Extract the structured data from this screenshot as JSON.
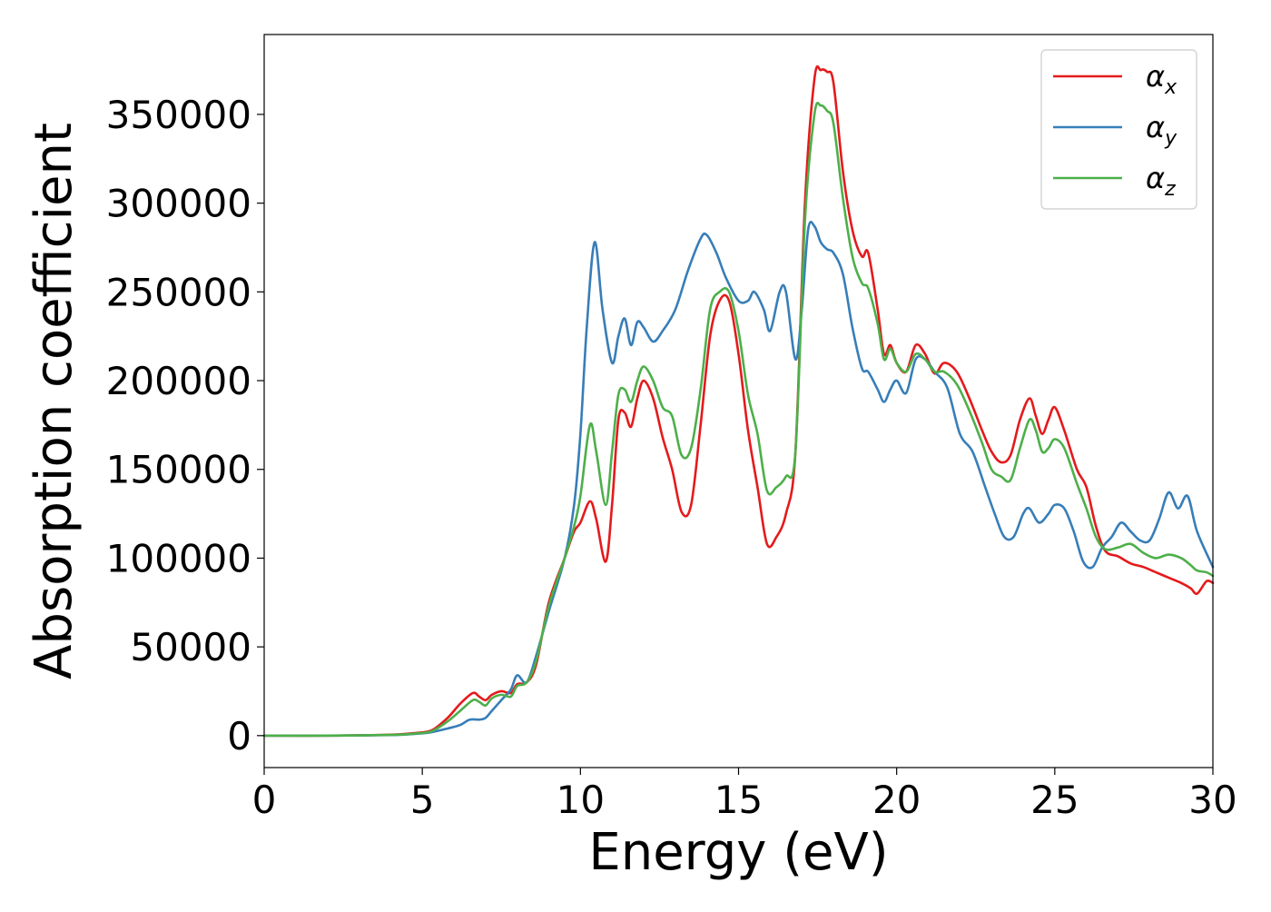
{
  "chart_data": {
    "type": "line",
    "title": "",
    "xlabel": "Energy (eV)",
    "ylabel": "Absorption coefficient",
    "xlim": [
      0,
      30
    ],
    "ylim": [
      -18000,
      395000
    ],
    "xticks": [
      0,
      5,
      10,
      15,
      20,
      25,
      30
    ],
    "yticks": [
      0,
      50000,
      100000,
      150000,
      200000,
      250000,
      300000,
      350000
    ],
    "grid": false,
    "legend_position": "top-right",
    "series": [
      {
        "name": "α_x",
        "legend_base": "α",
        "legend_sub": "x",
        "color": "#e41a1c",
        "x": [
          0,
          2,
          4,
          4.8,
          5.3,
          5.8,
          6.2,
          6.6,
          6.8,
          7.0,
          7.2,
          7.5,
          7.8,
          8.0,
          8.3,
          8.6,
          9.0,
          9.5,
          9.8,
          10.0,
          10.3,
          10.5,
          10.8,
          11.0,
          11.2,
          11.4,
          11.6,
          11.8,
          12.0,
          12.3,
          12.6,
          12.9,
          13.2,
          13.5,
          13.8,
          14.1,
          14.4,
          14.7,
          15.0,
          15.3,
          15.6,
          15.9,
          16.2,
          16.5,
          16.8,
          17.1,
          17.4,
          17.6,
          17.8,
          18.0,
          18.3,
          18.6,
          18.9,
          19.1,
          19.4,
          19.6,
          19.8,
          20.0,
          20.3,
          20.6,
          20.9,
          21.2,
          21.5,
          21.9,
          22.3,
          22.7,
          23.0,
          23.3,
          23.6,
          23.9,
          24.2,
          24.4,
          24.6,
          24.8,
          25.0,
          25.3,
          25.7,
          26.0,
          26.3,
          26.6,
          27.0,
          27.4,
          27.8,
          28.2,
          28.6,
          29.0,
          29.3,
          29.5,
          29.8,
          30.0
        ],
        "y": [
          0,
          0,
          500,
          1500,
          3000,
          10000,
          18000,
          24000,
          22000,
          20000,
          23000,
          25000,
          24000,
          29000,
          30000,
          40000,
          75000,
          100000,
          115000,
          120000,
          132000,
          122000,
          98000,
          130000,
          178000,
          182000,
          174000,
          190000,
          200000,
          190000,
          168000,
          150000,
          126000,
          130000,
          175000,
          225000,
          245000,
          245000,
          215000,
          172000,
          140000,
          108000,
          112000,
          125000,
          160000,
          300000,
          370000,
          375000,
          374000,
          368000,
          318000,
          285000,
          270000,
          272000,
          240000,
          215000,
          220000,
          210000,
          205000,
          220000,
          215000,
          204000,
          210000,
          205000,
          190000,
          172000,
          160000,
          154000,
          158000,
          178000,
          190000,
          180000,
          170000,
          178000,
          185000,
          172000,
          150000,
          140000,
          118000,
          104000,
          101000,
          97000,
          95000,
          92000,
          89000,
          86000,
          83000,
          80000,
          87000,
          86000
        ]
      },
      {
        "name": "α_y",
        "legend_base": "α",
        "legend_sub": "y",
        "color": "#377eb8",
        "x": [
          0,
          2,
          4,
          4.8,
          5.3,
          5.8,
          6.2,
          6.5,
          6.8,
          7.0,
          7.2,
          7.5,
          7.8,
          8.0,
          8.3,
          8.6,
          9.0,
          9.5,
          9.8,
          10.0,
          10.2,
          10.45,
          10.7,
          11.0,
          11.2,
          11.4,
          11.6,
          11.8,
          12.0,
          12.3,
          12.6,
          13.0,
          13.4,
          13.8,
          14.0,
          14.3,
          14.6,
          15.0,
          15.3,
          15.5,
          15.8,
          16.0,
          16.3,
          16.5,
          16.8,
          17.0,
          17.2,
          17.4,
          17.6,
          17.8,
          18.0,
          18.3,
          18.6,
          18.9,
          19.1,
          19.4,
          19.6,
          19.8,
          20.0,
          20.3,
          20.6,
          20.9,
          21.2,
          21.6,
          22.0,
          22.4,
          22.8,
          23.1,
          23.4,
          23.7,
          24.0,
          24.2,
          24.5,
          24.8,
          25.0,
          25.3,
          25.6,
          25.9,
          26.2,
          26.5,
          26.8,
          27.1,
          27.4,
          27.7,
          28.0,
          28.3,
          28.6,
          28.9,
          29.2,
          29.5,
          30.0
        ],
        "y": [
          0,
          0,
          300,
          1000,
          2000,
          4000,
          6000,
          9000,
          9000,
          10000,
          14000,
          20000,
          26000,
          34000,
          30000,
          45000,
          70000,
          100000,
          130000,
          170000,
          230000,
          278000,
          240000,
          210000,
          225000,
          235000,
          220000,
          233000,
          230000,
          222000,
          228000,
          240000,
          262000,
          280000,
          282000,
          272000,
          258000,
          245000,
          245000,
          250000,
          240000,
          228000,
          250000,
          250000,
          212000,
          240000,
          285000,
          287000,
          278000,
          274000,
          272000,
          260000,
          230000,
          207000,
          205000,
          195000,
          188000,
          195000,
          200000,
          193000,
          212000,
          212000,
          205000,
          196000,
          170000,
          160000,
          140000,
          125000,
          112000,
          112000,
          125000,
          128000,
          120000,
          125000,
          130000,
          128000,
          115000,
          98000,
          95000,
          106000,
          112000,
          120000,
          115000,
          110000,
          110000,
          122000,
          137000,
          128000,
          135000,
          115000,
          95000
        ]
      },
      {
        "name": "α_z",
        "legend_base": "α",
        "legend_sub": "z",
        "color": "#4daf4a",
        "x": [
          0,
          2,
          4,
          4.8,
          5.3,
          5.8,
          6.2,
          6.6,
          6.8,
          7.0,
          7.2,
          7.5,
          7.8,
          8.0,
          8.3,
          8.6,
          9.0,
          9.5,
          9.8,
          10.0,
          10.3,
          10.5,
          10.8,
          11.0,
          11.2,
          11.4,
          11.6,
          11.8,
          12.0,
          12.3,
          12.6,
          12.9,
          13.2,
          13.5,
          13.8,
          14.1,
          14.4,
          14.7,
          15.0,
          15.3,
          15.6,
          15.9,
          16.2,
          16.5,
          16.8,
          17.1,
          17.4,
          17.6,
          17.8,
          18.0,
          18.3,
          18.6,
          18.9,
          19.1,
          19.4,
          19.6,
          19.8,
          20.0,
          20.3,
          20.6,
          20.9,
          21.2,
          21.5,
          21.9,
          22.3,
          22.7,
          23.0,
          23.3,
          23.6,
          23.9,
          24.2,
          24.4,
          24.6,
          24.8,
          25.0,
          25.3,
          25.7,
          26.0,
          26.3,
          26.6,
          27.0,
          27.4,
          27.8,
          28.2,
          28.6,
          29.0,
          29.3,
          29.5,
          29.8,
          30.0
        ],
        "y": [
          0,
          0,
          400,
          1200,
          2500,
          8000,
          14000,
          20000,
          19000,
          17000,
          21000,
          23000,
          22000,
          28000,
          30000,
          42000,
          73000,
          100000,
          118000,
          135000,
          175000,
          160000,
          130000,
          160000,
          192000,
          195000,
          188000,
          200000,
          208000,
          200000,
          185000,
          180000,
          158000,
          162000,
          195000,
          240000,
          250000,
          250000,
          228000,
          192000,
          170000,
          138000,
          140000,
          146000,
          160000,
          290000,
          350000,
          355000,
          352000,
          345000,
          303000,
          270000,
          255000,
          252000,
          232000,
          212000,
          218000,
          210000,
          205000,
          215000,
          212000,
          205000,
          205000,
          198000,
          183000,
          165000,
          150000,
          146000,
          144000,
          162000,
          178000,
          172000,
          160000,
          162000,
          167000,
          162000,
          142000,
          128000,
          112000,
          105000,
          106000,
          108000,
          103000,
          100000,
          102000,
          100000,
          96000,
          93000,
          92000,
          90000
        ]
      }
    ]
  }
}
